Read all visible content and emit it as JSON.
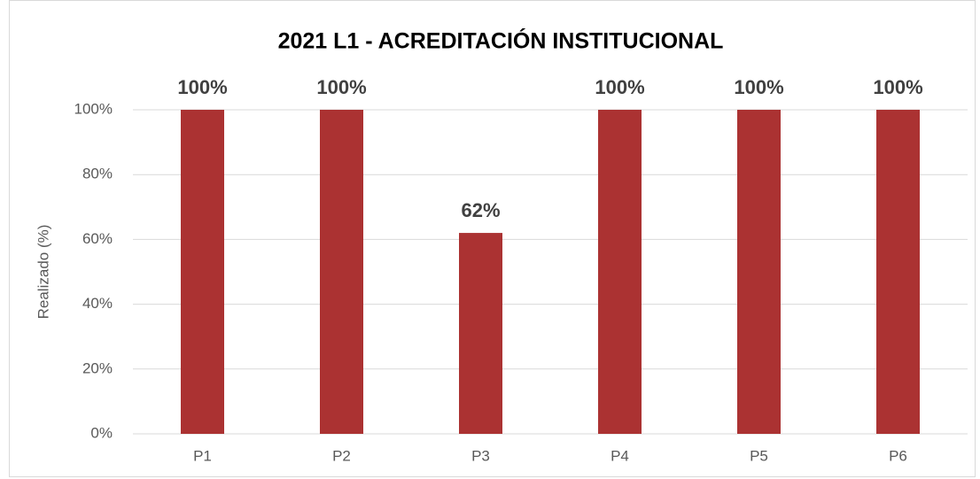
{
  "chart_data": {
    "type": "bar",
    "title": "2021 L1 - ACREDITACIÓN INSTITUCIONAL",
    "y_label": "Realizado (%)",
    "categories": [
      "P1",
      "P2",
      "P3",
      "P4",
      "P5",
      "P6"
    ],
    "values": [
      100,
      100,
      62,
      100,
      100,
      100
    ],
    "value_labels": [
      "100%",
      "100%",
      "62%",
      "100%",
      "100%",
      "100%"
    ],
    "color": "#ab3232",
    "ylim": [
      0,
      100
    ],
    "yticks": [
      {
        "value": 0,
        "label": "0%"
      },
      {
        "value": 20,
        "label": "20%"
      },
      {
        "value": 40,
        "label": "40%"
      },
      {
        "value": 60,
        "label": "60%"
      },
      {
        "value": 80,
        "label": "80%"
      },
      {
        "value": 100,
        "label": "100%"
      }
    ],
    "grid": true
  }
}
